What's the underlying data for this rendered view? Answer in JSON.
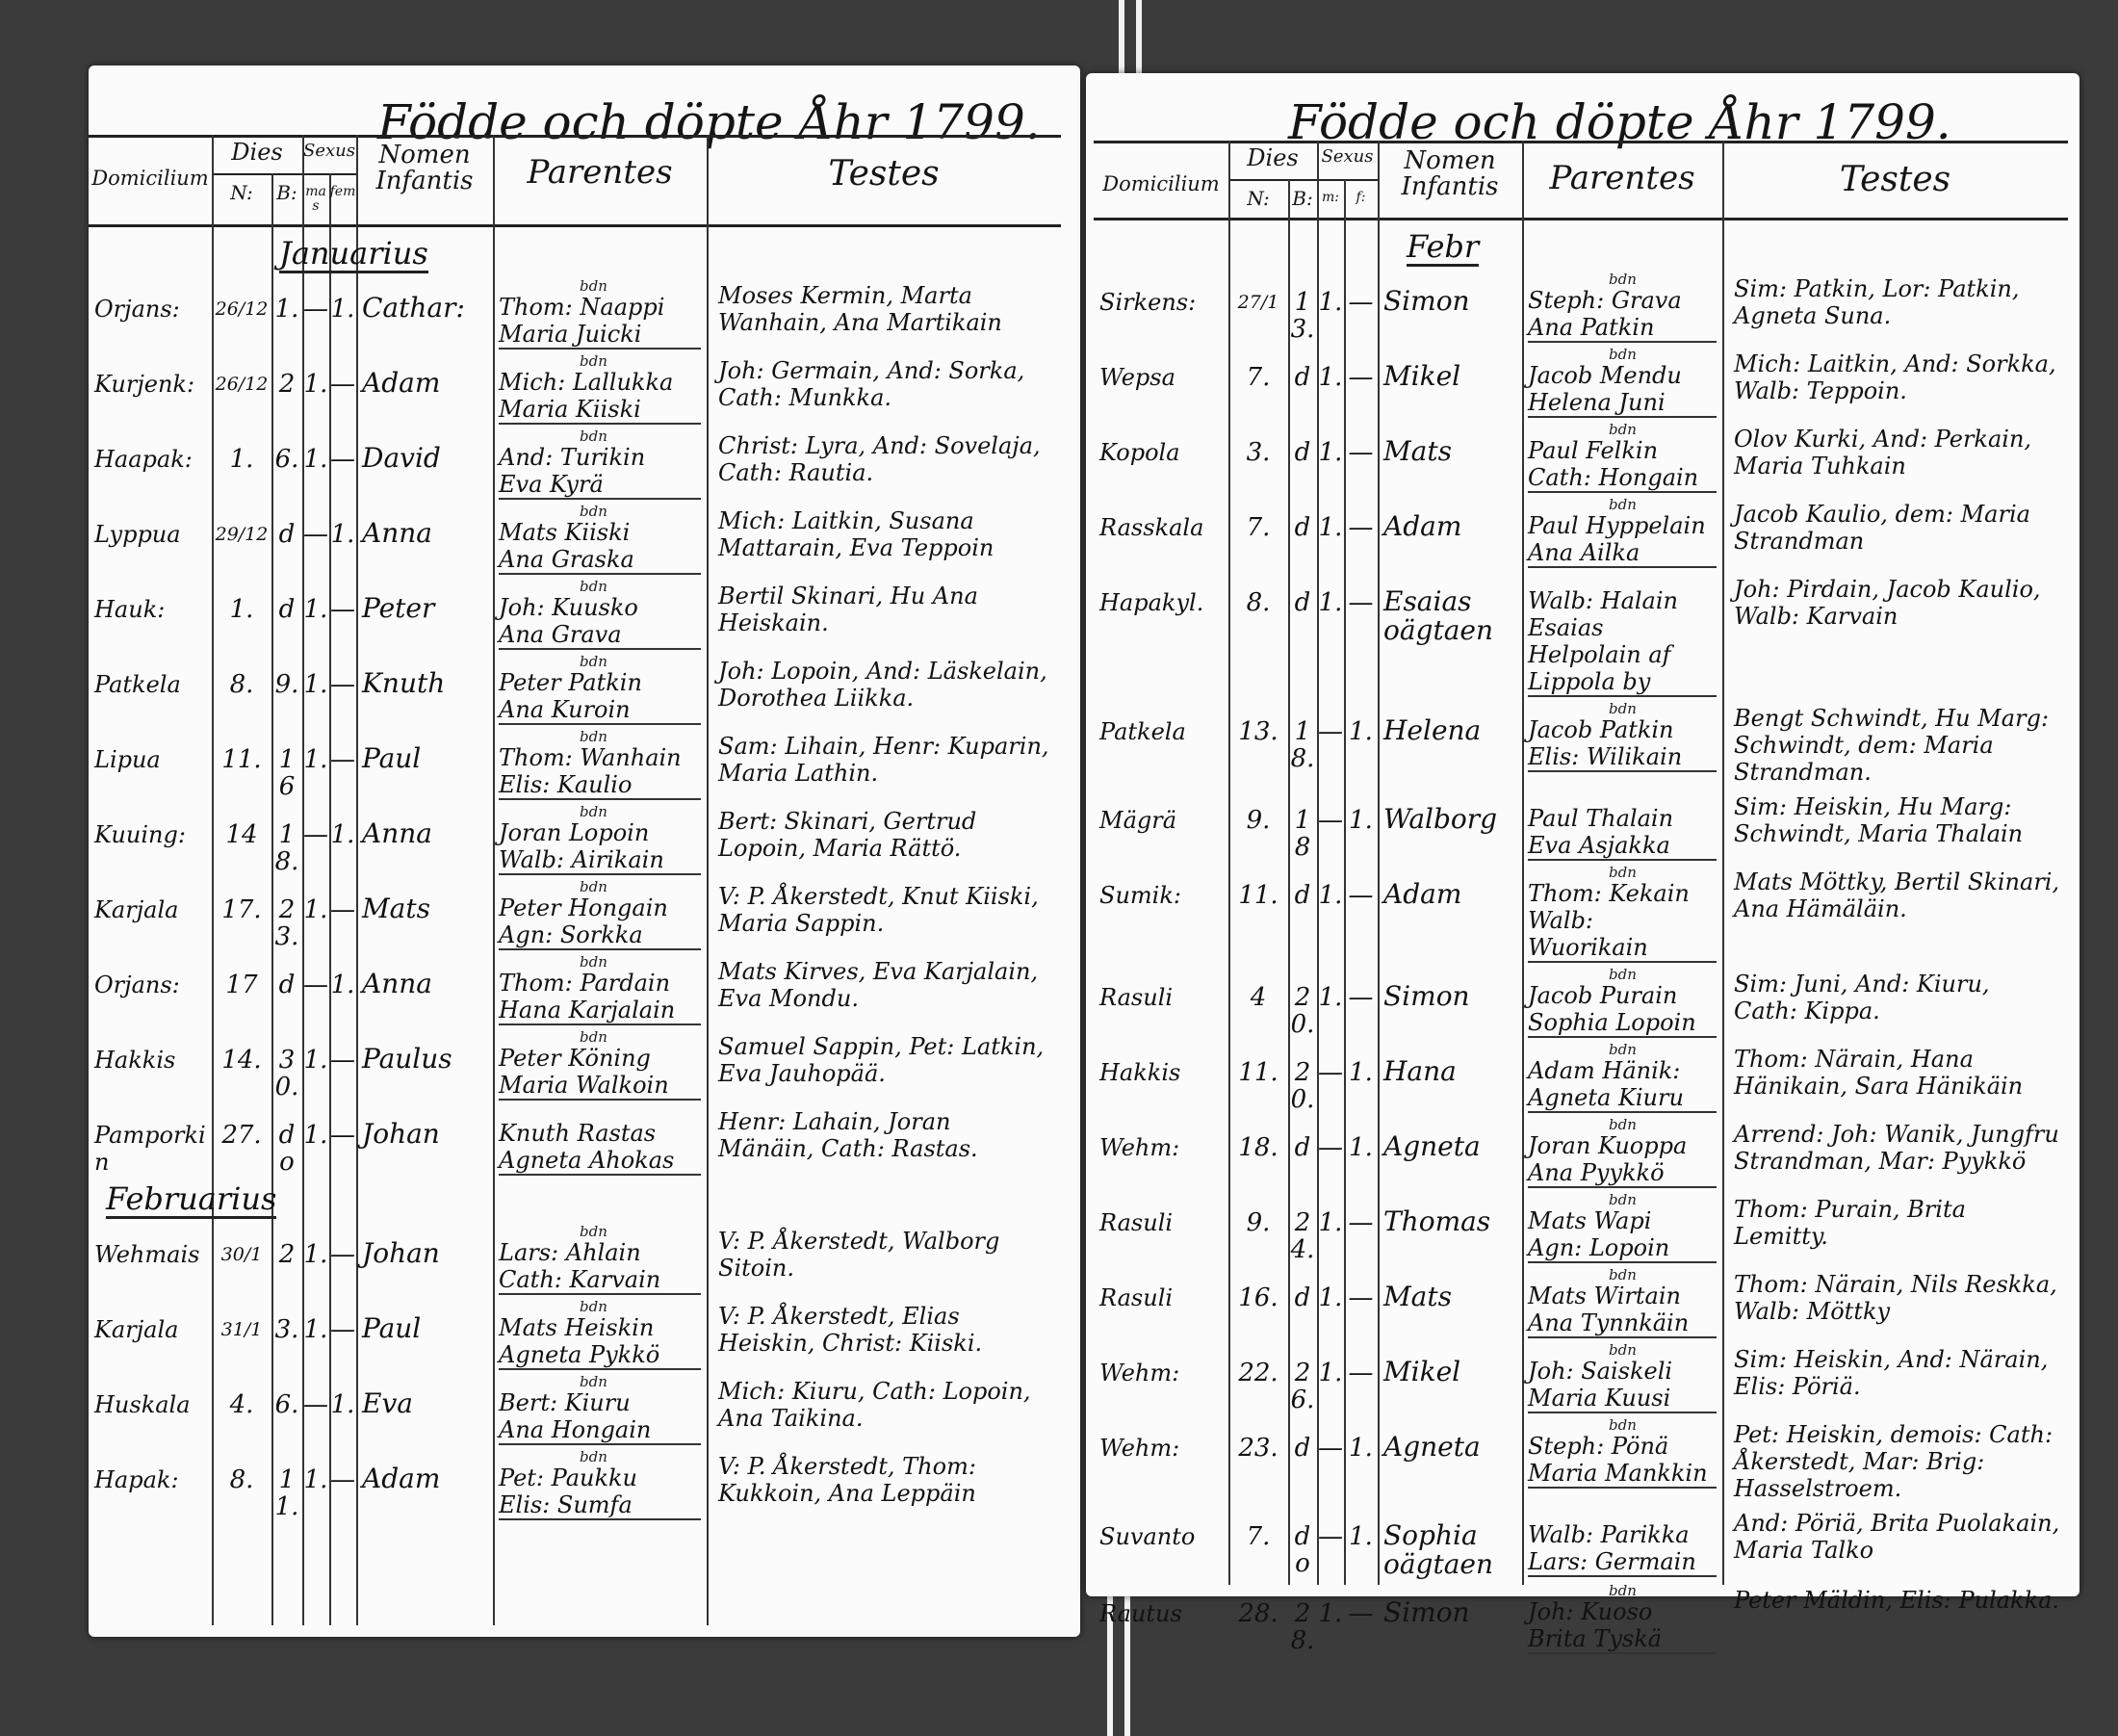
{
  "left_page": {
    "title": "Födde och döpte Åhr 1799.",
    "headers": {
      "domicilium": "Domicilium",
      "dies": "Dies",
      "dies_n": "N:",
      "dies_b": "B:",
      "sexus": "Sexus",
      "sexus_m": "mas",
      "sexus_f": "fem",
      "nomen": "Nomen Infantis",
      "parentes": "Parentes",
      "testes": "Testes"
    },
    "months": [
      {
        "label": "Januarius",
        "before_row": 0
      },
      {
        "label": "Februarius",
        "before_row": 12
      }
    ],
    "rows": [
      {
        "domicile": "Orjans:",
        "natus": "26/12",
        "baptized": "1.",
        "mas": "—",
        "fem": "1.",
        "name": "Cathar:",
        "mark": "bdn",
        "parents": [
          "Thom: Naappi",
          "Maria Juicki"
        ],
        "testes": "Moses Kermin, Marta Wanhain, Ana Martikain"
      },
      {
        "domicile": "Kurjenk:",
        "natus": "26/12",
        "baptized": "2",
        "mas": "1.",
        "fem": "—",
        "name": "Adam",
        "mark": "bdn",
        "parents": [
          "Mich: Lallukka",
          "Maria Kiiski"
        ],
        "testes": "Joh: Germain, And: Sorka, Cath: Munkka."
      },
      {
        "domicile": "Haapak:",
        "natus": "1.",
        "baptized": "6.",
        "mas": "1.",
        "fem": "—",
        "name": "David",
        "mark": "bdn",
        "parents": [
          "And: Turikin",
          "Eva Kyrä"
        ],
        "testes": "Christ: Lyra, And: Sovelaja, Cath: Rautia."
      },
      {
        "domicile": "Lyppua",
        "natus": "29/12",
        "baptized": "d",
        "mas": "—",
        "fem": "1.",
        "name": "Anna",
        "mark": "bdn",
        "parents": [
          "Mats Kiiski",
          "Ana Graska"
        ],
        "testes": "Mich: Laitkin, Susana Mattarain, Eva Teppoin"
      },
      {
        "domicile": "Hauk:",
        "natus": "1.",
        "baptized": "d",
        "mas": "1.",
        "fem": "—",
        "name": "Peter",
        "mark": "bdn",
        "parents": [
          "Joh: Kuusko",
          "Ana Grava"
        ],
        "testes": "Bertil Skinari, Hu Ana Heiskain."
      },
      {
        "domicile": "Patkela",
        "natus": "8.",
        "baptized": "9.",
        "mas": "1.",
        "fem": "—",
        "name": "Knuth",
        "mark": "bdn",
        "parents": [
          "Peter Patkin",
          "Ana Kuroin"
        ],
        "testes": "Joh: Lopoin, And: Läskelain, Dorothea Liikka."
      },
      {
        "domicile": "Lipua",
        "natus": "11.",
        "baptized": "16",
        "mas": "1.",
        "fem": "—",
        "name": "Paul",
        "mark": "bdn",
        "parents": [
          "Thom: Wanhain",
          "Elis: Kaulio"
        ],
        "testes": "Sam: Lihain, Henr: Kuparin, Maria Lathin."
      },
      {
        "domicile": "Kuuing:",
        "natus": "14",
        "baptized": "18.",
        "mas": "—",
        "fem": "1.",
        "name": "Anna",
        "mark": "bdn",
        "parents": [
          "Joran Lopoin",
          "Walb: Airikain"
        ],
        "testes": "Bert: Skinari, Gertrud Lopoin, Maria Rättö."
      },
      {
        "domicile": "Karjala",
        "natus": "17.",
        "baptized": "23.",
        "mas": "1.",
        "fem": "—",
        "name": "Mats",
        "mark": "bdn",
        "parents": [
          "Peter Hongain",
          "Agn: Sorkka"
        ],
        "testes": "V: P. Åkerstedt, Knut Kiiski, Maria Sappin."
      },
      {
        "domicile": "Orjans:",
        "natus": "17",
        "baptized": "d",
        "mas": "—",
        "fem": "1.",
        "name": "Anna",
        "mark": "bdn",
        "parents": [
          "Thom: Pardain",
          "Hana Karjalain"
        ],
        "testes": "Mats Kirves, Eva Karjalain, Eva Mondu."
      },
      {
        "domicile": "Hakkis",
        "natus": "14.",
        "baptized": "30.",
        "mas": "1.",
        "fem": "—",
        "name": "Paulus",
        "mark": "bdn",
        "parents": [
          "Peter Köning",
          "Maria Walkoin"
        ],
        "testes": "Samuel Sappin, Pet: Latkin, Eva Jauhopää."
      },
      {
        "domicile": "Pamporkin",
        "natus": "27.",
        "baptized": "do",
        "mas": "1.",
        "fem": "—",
        "name": "Johan",
        "mark": "",
        "parents": [
          "Knuth Rastas",
          "Agneta Ahokas"
        ],
        "testes": "Henr: Lahain, Joran Mänäin, Cath: Rastas."
      },
      {
        "domicile": "Wehmais",
        "natus": "30/1",
        "baptized": "2",
        "mas": "1.",
        "fem": "—",
        "name": "Johan",
        "mark": "bdn",
        "parents": [
          "Lars: Ahlain",
          "Cath: Karvain"
        ],
        "testes": "V: P. Åkerstedt, Walborg Sitoin."
      },
      {
        "domicile": "Karjala",
        "natus": "31/1",
        "baptized": "3.",
        "mas": "1.",
        "fem": "—",
        "name": "Paul",
        "mark": "bdn",
        "parents": [
          "Mats Heiskin",
          "Agneta Pykkö"
        ],
        "testes": "V: P. Åkerstedt, Elias Heiskin, Christ: Kiiski."
      },
      {
        "domicile": "Huskala",
        "natus": "4.",
        "baptized": "6.",
        "mas": "—",
        "fem": "1.",
        "name": "Eva",
        "mark": "bdn",
        "parents": [
          "Bert: Kiuru",
          "Ana Hongain"
        ],
        "testes": "Mich: Kiuru, Cath: Lopoin, Ana Taikina."
      },
      {
        "domicile": "Hapak:",
        "natus": "8.",
        "baptized": "11.",
        "mas": "1.",
        "fem": "—",
        "name": "Adam",
        "mark": "bdn",
        "parents": [
          "Pet: Paukku",
          "Elis: Sumfa"
        ],
        "testes": "V: P. Åkerstedt, Thom: Kukkoin, Ana Leppäin"
      }
    ]
  },
  "right_page": {
    "title": "Födde och döpte Åhr 1799.",
    "headers": {
      "domicilium": "Domicilium",
      "dies": "Dies",
      "dies_n": "N:",
      "dies_b": "B:",
      "sexus": "Sexus",
      "sexus_m": "m:",
      "sexus_f": "f:",
      "nomen": "Nomen Infantis",
      "parentes": "Parentes",
      "testes": "Testes"
    },
    "months": [
      {
        "label": "Febr",
        "before_row": 0
      }
    ],
    "rows": [
      {
        "domicile": "Sirkens:",
        "natus": "27/1",
        "baptized": "13.",
        "mas": "1.",
        "fem": "—",
        "name": "Simon",
        "mark": "bdn",
        "parents": [
          "Steph: Grava",
          "Ana Patkin"
        ],
        "testes": "Sim: Patkin, Lor: Patkin, Agneta Suna."
      },
      {
        "domicile": "Wepsa",
        "natus": "7.",
        "baptized": "d",
        "mas": "1.",
        "fem": "—",
        "name": "Mikel",
        "mark": "bdn",
        "parents": [
          "Jacob Mendu",
          "Helena Juni"
        ],
        "testes": "Mich: Laitkin, And: Sorkka, Walb: Teppoin."
      },
      {
        "domicile": "Kopola",
        "natus": "3.",
        "baptized": "d",
        "mas": "1.",
        "fem": "—",
        "name": "Mats",
        "mark": "bdn",
        "parents": [
          "Paul Felkin",
          "Cath: Hongain"
        ],
        "testes": "Olov Kurki, And: Perkain, Maria Tuhkain"
      },
      {
        "domicile": "Rasskala",
        "natus": "7.",
        "baptized": "d",
        "mas": "1.",
        "fem": "—",
        "name": "Adam",
        "mark": "bdn",
        "parents": [
          "Paul Hyppelain",
          "Ana Ailka"
        ],
        "testes": "Jacob Kaulio, dem: Maria Strandman"
      },
      {
        "domicile": "Hapakyl.",
        "natus": "8.",
        "baptized": "d",
        "mas": "1.",
        "fem": "—",
        "name": "Esaias oägtaen",
        "mark": "",
        "parents": [
          "Walb: Halain",
          "Esaias Helpolain af Lippola by"
        ],
        "testes": "Joh: Pirdain, Jacob Kaulio, Walb: Karvain"
      },
      {
        "domicile": "Patkela",
        "natus": "13.",
        "baptized": "18.",
        "mas": "—",
        "fem": "1.",
        "name": "Helena",
        "mark": "bdn",
        "parents": [
          "Jacob Patkin",
          "Elis: Wilikain"
        ],
        "testes": "Bengt Schwindt, Hu Marg: Schwindt, dem: Maria Strandman."
      },
      {
        "domicile": "Mägrä",
        "natus": "9.",
        "baptized": "18",
        "mas": "—",
        "fem": "1.",
        "name": "Walborg",
        "mark": "",
        "parents": [
          "Paul Thalain",
          "Eva Asjakka"
        ],
        "testes": "Sim: Heiskin, Hu Marg: Schwindt, Maria Thalain"
      },
      {
        "domicile": "Sumik:",
        "natus": "11.",
        "baptized": "d",
        "mas": "1.",
        "fem": "—",
        "name": "Adam",
        "mark": "bdn",
        "parents": [
          "Thom: Kekain",
          "Walb: Wuorikain"
        ],
        "testes": "Mats Möttky, Bertil Skinari, Ana Hämäläin."
      },
      {
        "domicile": "Rasuli",
        "natus": "4",
        "baptized": "20.",
        "mas": "1.",
        "fem": "—",
        "name": "Simon",
        "mark": "bdn",
        "parents": [
          "Jacob Purain",
          "Sophia Lopoin"
        ],
        "testes": "Sim: Juni, And: Kiuru, Cath: Kippa."
      },
      {
        "domicile": "Hakkis",
        "natus": "11.",
        "baptized": "20.",
        "mas": "—",
        "fem": "1.",
        "name": "Hana",
        "mark": "bdn",
        "parents": [
          "Adam Hänik:",
          "Agneta Kiuru"
        ],
        "testes": "Thom: Närain, Hana Hänikain, Sara Hänikäin"
      },
      {
        "domicile": "Wehm:",
        "natus": "18.",
        "baptized": "d",
        "mas": "—",
        "fem": "1.",
        "name": "Agneta",
        "mark": "bdn",
        "parents": [
          "Joran Kuoppa",
          "Ana Pyykkö"
        ],
        "testes": "Arrend: Joh: Wanik, Jungfru Strandman, Mar: Pyykkö"
      },
      {
        "domicile": "Rasuli",
        "natus": "9.",
        "baptized": "24.",
        "mas": "1.",
        "fem": "—",
        "name": "Thomas",
        "mark": "bdn",
        "parents": [
          "Mats Wapi",
          "Agn: Lopoin"
        ],
        "testes": "Thom: Purain, Brita Lemitty."
      },
      {
        "domicile": "Rasuli",
        "natus": "16.",
        "baptized": "d",
        "mas": "1.",
        "fem": "—",
        "name": "Mats",
        "mark": "bdn",
        "parents": [
          "Mats Wirtain",
          "Ana Tynnkäin"
        ],
        "testes": "Thom: Närain, Nils Reskka, Walb: Möttky"
      },
      {
        "domicile": "Wehm:",
        "natus": "22.",
        "baptized": "26.",
        "mas": "1.",
        "fem": "—",
        "name": "Mikel",
        "mark": "bdn",
        "parents": [
          "Joh: Saiskeli",
          "Maria Kuusi"
        ],
        "testes": "Sim: Heiskin, And: Närain, Elis: Pöriä."
      },
      {
        "domicile": "Wehm:",
        "natus": "23.",
        "baptized": "d",
        "mas": "—",
        "fem": "1.",
        "name": "Agneta",
        "mark": "bdn",
        "parents": [
          "Steph: Pönä",
          "Maria Mankkin"
        ],
        "testes": "Pet: Heiskin, demois: Cath: Åkerstedt, Mar: Brig: Hasselstroem."
      },
      {
        "domicile": "Suvanto",
        "natus": "7.",
        "baptized": "do",
        "mas": "—",
        "fem": "1.",
        "name": "Sophia oägtaen",
        "mark": "",
        "parents": [
          "Walb: Parikka",
          "Lars: Germain"
        ],
        "testes": "And: Pöriä, Brita Puolakain, Maria Talko"
      },
      {
        "domicile": "Rautus",
        "natus": "28.",
        "baptized": "28.",
        "mas": "1.",
        "fem": "—",
        "name": "Simon",
        "mark": "bdn",
        "parents": [
          "Joh: Kuoso",
          "Brita Tyskä"
        ],
        "testes": "Peter Mäldin, Elis: Pulakka."
      }
    ]
  },
  "colors": {
    "background": "#3b3b3b",
    "paper": "#fbfbfb",
    "ink": "#111111"
  }
}
